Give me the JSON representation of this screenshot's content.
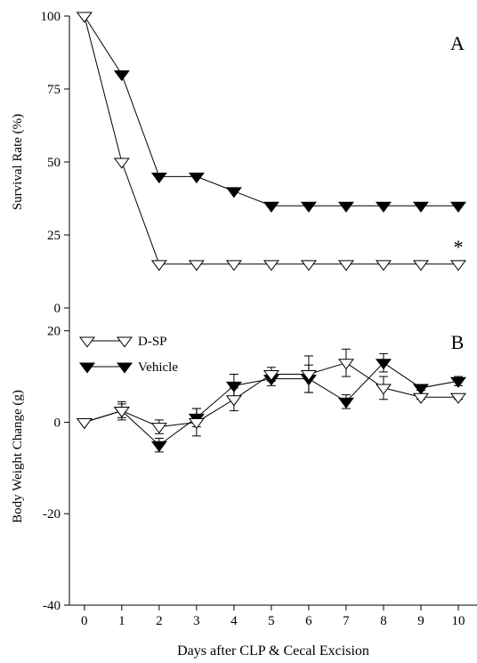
{
  "chart_data": [
    {
      "type": "line",
      "panel_label": "A",
      "xlabel": "Days after CLP & Cecal Excision",
      "ylabel": "Survival Rate (%)",
      "x": [
        0,
        1,
        2,
        3,
        4,
        5,
        6,
        7,
        8,
        9,
        10
      ],
      "x_ticks": [
        "0",
        "1",
        "2",
        "3",
        "4",
        "5",
        "6",
        "7",
        "8",
        "9",
        "10"
      ],
      "xlim": [
        -0.4,
        10.5
      ],
      "ylim": [
        0,
        100
      ],
      "y_ticks": [
        "0",
        "25",
        "50",
        "75",
        "100"
      ],
      "series": [
        {
          "name": "D-SP",
          "marker": "open-triangle-down",
          "color": "#000000",
          "values": [
            100,
            50,
            15,
            15,
            15,
            15,
            15,
            15,
            15,
            15,
            15
          ]
        },
        {
          "name": "Vehicle",
          "marker": "filled-triangle-down",
          "color": "#000000",
          "values": [
            100,
            80,
            45,
            45,
            40,
            35,
            35,
            35,
            35,
            35,
            35
          ]
        }
      ],
      "annotation": "*",
      "grid": false
    },
    {
      "type": "line",
      "panel_label": "B",
      "xlabel": "Days after CLP & Cecal Excision",
      "ylabel": "Body Weight Change (g)",
      "x": [
        0,
        1,
        2,
        3,
        4,
        5,
        6,
        7,
        8,
        9,
        10
      ],
      "x_ticks": [
        "0",
        "1",
        "2",
        "3",
        "4",
        "5",
        "6",
        "7",
        "8",
        "9",
        "10"
      ],
      "xlim": [
        -0.4,
        10.5
      ],
      "ylim": [
        -40,
        25
      ],
      "y_ticks": [
        "-40",
        "-20",
        "0",
        "20"
      ],
      "legend_position": "top-left",
      "series": [
        {
          "name": "D-SP",
          "marker": "open-triangle-down",
          "color": "#000000",
          "values": [
            0,
            2.5,
            -1,
            0,
            5,
            10.5,
            10.5,
            13,
            7.5,
            5.5,
            5.5
          ],
          "errors": [
            0,
            2,
            1.5,
            3,
            2.5,
            1.5,
            4,
            3,
            2.5,
            0.5,
            0.5
          ]
        },
        {
          "name": "Vehicle",
          "marker": "filled-triangle-down",
          "color": "#000000",
          "values": [
            0,
            2.5,
            -5,
            1,
            8,
            9.5,
            9.5,
            4.5,
            13,
            7.5,
            9
          ],
          "errors": [
            0,
            1.5,
            1.5,
            2,
            2.5,
            1.5,
            3,
            1.5,
            2,
            0.5,
            1
          ]
        }
      ],
      "grid": false
    }
  ]
}
